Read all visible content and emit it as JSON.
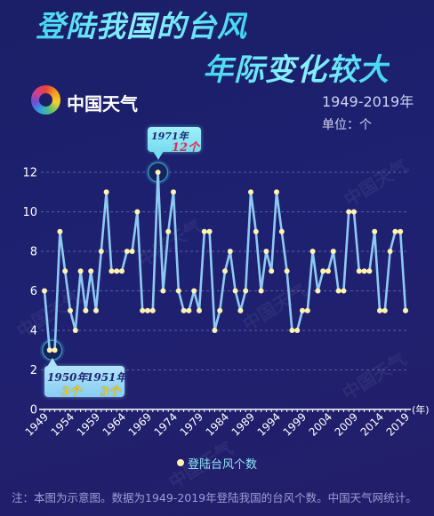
{
  "brand": {
    "logo_icon": "china-weather-swirl-logo-icon",
    "name": "中国天气"
  },
  "watermark": "中国天气",
  "chart_data": {
    "type": "line",
    "title_lines": [
      "登陆我国的台风",
      "年际变化较大"
    ],
    "period": "1949-2019年",
    "unit_label": "单位：个",
    "x": [
      1949,
      1950,
      1951,
      1952,
      1953,
      1954,
      1955,
      1956,
      1957,
      1958,
      1959,
      1960,
      1961,
      1962,
      1963,
      1964,
      1965,
      1966,
      1967,
      1968,
      1969,
      1970,
      1971,
      1972,
      1973,
      1974,
      1975,
      1976,
      1977,
      1978,
      1979,
      1980,
      1981,
      1982,
      1983,
      1984,
      1985,
      1986,
      1987,
      1988,
      1989,
      1990,
      1991,
      1992,
      1993,
      1994,
      1995,
      1996,
      1997,
      1998,
      1999,
      2000,
      2001,
      2002,
      2003,
      2004,
      2005,
      2006,
      2007,
      2008,
      2009,
      2010,
      2011,
      2012,
      2013,
      2014,
      2015,
      2016,
      2017,
      2018,
      2019
    ],
    "series": [
      {
        "name": "登陆台风个数",
        "values": [
          6,
          3,
          3,
          9,
          7,
          5,
          4,
          7,
          5,
          7,
          5,
          8,
          11,
          7,
          7,
          7,
          8,
          8,
          10,
          5,
          5,
          5,
          12,
          6,
          9,
          11,
          6,
          5,
          5,
          6,
          5,
          9,
          9,
          4,
          5,
          7,
          8,
          6,
          5,
          6,
          11,
          9,
          6,
          8,
          7,
          11,
          9,
          7,
          4,
          4,
          5,
          5,
          8,
          6,
          7,
          7,
          8,
          6,
          6,
          10,
          10,
          7,
          7,
          7,
          9,
          5,
          5,
          8,
          9,
          9,
          5
        ]
      }
    ],
    "xlim": [
      1949,
      2019
    ],
    "ylim": [
      0,
      12
    ],
    "x_ticks": [
      1949,
      1954,
      1959,
      1964,
      1969,
      1974,
      1979,
      1984,
      1989,
      1994,
      1999,
      2004,
      2009,
      2014,
      2019
    ],
    "y_ticks": [
      0,
      2,
      4,
      6,
      8,
      10,
      12
    ],
    "xlabel": "(年)",
    "grid": true,
    "legend": "bottom-center",
    "annotations": [
      {
        "years": [
          1971
        ],
        "value": 12,
        "items": [
          {
            "label": "1971年",
            "value_label": "12个"
          }
        ]
      },
      {
        "years": [
          1950,
          1951
        ],
        "value": 3,
        "items": [
          {
            "label": "1950年",
            "value_label": "3个"
          },
          {
            "label": "1951年",
            "value_label": "3个"
          }
        ]
      }
    ]
  },
  "colors": {
    "background": "#1c1f6a",
    "title": "#42daf0",
    "line": "#8ec9f2",
    "point": "#fff3b0",
    "highlight_fill": "#15245c",
    "highlight_ring": "#3a8fbf",
    "highlight_glow": "#2a6fa3",
    "callout_1971": "#84e4f3",
    "callout_1950": "#9fd8f6",
    "value_red": "#e8294f",
    "value_yellow": "#f6d21a",
    "label_navy": "#1d2670"
  },
  "footer": {
    "note": "注：本图为示意图。数据为1949-2019年登陆我国的台风个数。中国天气网统计。"
  }
}
